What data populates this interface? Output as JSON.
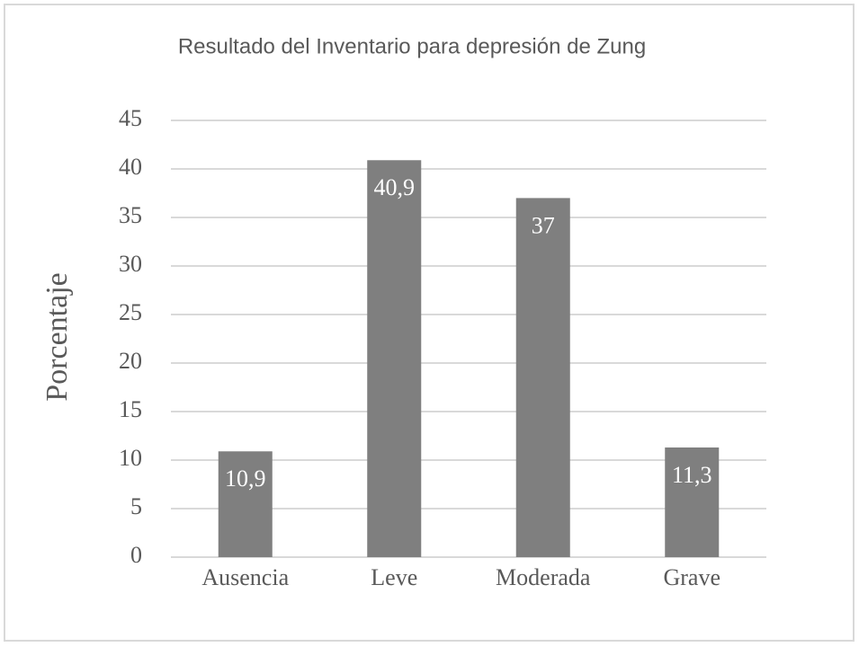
{
  "chart_data": {
    "type": "bar",
    "title": "Resultado del Inventario para depresión de Zung",
    "y_label": "Porcentaje",
    "categories": [
      "Ausencia",
      "Leve",
      "Moderada",
      "Grave"
    ],
    "values": [
      10.9,
      40.9,
      37,
      11.3
    ],
    "value_labels": [
      "10,9",
      "40,9",
      "37",
      "11,3"
    ],
    "color": "#7f7f7f",
    "ylim": [
      0,
      45
    ],
    "yticks": [
      0,
      5,
      10,
      15,
      20,
      25,
      30,
      35,
      40,
      45
    ],
    "grid": true
  }
}
